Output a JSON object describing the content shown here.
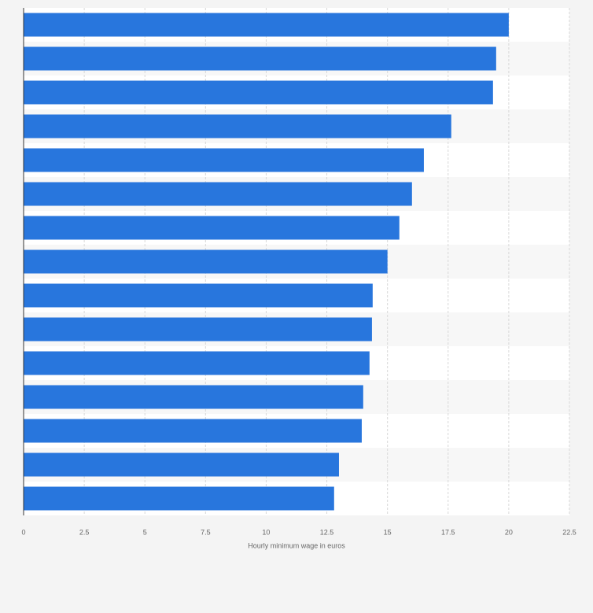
{
  "chart_data": {
    "type": "bar",
    "orientation": "horizontal",
    "x_label": "Hourly minimum wage in euros",
    "categories": [
      null,
      null,
      null,
      null,
      null,
      null,
      null,
      null,
      null,
      null,
      null,
      null,
      null,
      null,
      null
    ],
    "values": [
      20.0,
      19.48,
      19.35,
      17.63,
      16.5,
      16.01,
      15.49,
      15.0,
      14.39,
      14.36,
      14.26,
      14.0,
      13.94,
      13.0,
      12.8
    ],
    "color": "#2876dd",
    "xlim": [
      0,
      22.5
    ],
    "xticks": [
      0,
      2.5,
      5,
      7.5,
      10,
      12.5,
      15,
      17.5,
      20,
      22.5
    ],
    "grid": true
  }
}
